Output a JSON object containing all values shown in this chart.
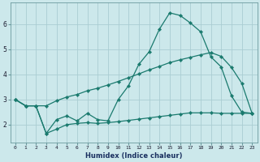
{
  "xlabel": "Humidex (Indice chaleur)",
  "ylabel": "",
  "bg_color": "#cce8eb",
  "grid_color": "#aacdd2",
  "line_color": "#1a7a6e",
  "xlim": [
    -0.5,
    23.5
  ],
  "ylim": [
    1.3,
    6.85
  ],
  "x_ticks": [
    0,
    1,
    2,
    3,
    4,
    5,
    6,
    7,
    8,
    9,
    10,
    11,
    12,
    13,
    14,
    15,
    16,
    17,
    18,
    19,
    20,
    21,
    22,
    23
  ],
  "y_ticks": [
    2,
    3,
    4,
    5,
    6
  ],
  "line1_x": [
    0,
    1,
    2,
    3,
    4,
    5,
    6,
    7,
    8,
    9,
    10,
    11,
    12,
    13,
    14,
    15,
    16,
    17,
    18,
    19,
    20,
    21,
    22,
    23
  ],
  "line1_y": [
    3.0,
    2.75,
    2.75,
    1.65,
    2.2,
    2.35,
    2.15,
    2.45,
    2.2,
    2.15,
    3.0,
    3.55,
    4.4,
    4.9,
    5.8,
    6.45,
    6.35,
    6.05,
    5.7,
    4.7,
    4.3,
    3.15,
    2.5,
    2.45
  ],
  "line2_x": [
    0,
    1,
    2,
    3,
    4,
    5,
    6,
    7,
    8,
    9,
    10,
    11,
    12,
    13,
    14,
    15,
    16,
    17,
    18,
    19,
    20,
    21,
    22,
    23
  ],
  "line2_y": [
    3.0,
    2.75,
    2.75,
    2.75,
    2.95,
    3.1,
    3.2,
    3.35,
    3.45,
    3.58,
    3.72,
    3.87,
    4.02,
    4.18,
    4.32,
    4.47,
    4.58,
    4.68,
    4.78,
    4.87,
    4.72,
    4.28,
    3.65,
    2.45
  ],
  "line3_x": [
    0,
    1,
    2,
    3,
    4,
    5,
    6,
    7,
    8,
    9,
    10,
    11,
    12,
    13,
    14,
    15,
    16,
    17,
    18,
    19,
    20,
    21,
    22,
    23
  ],
  "line3_y": [
    3.0,
    2.75,
    2.75,
    1.65,
    1.82,
    2.0,
    2.05,
    2.08,
    2.05,
    2.08,
    2.12,
    2.17,
    2.22,
    2.27,
    2.32,
    2.37,
    2.42,
    2.47,
    2.47,
    2.47,
    2.45,
    2.45,
    2.45,
    2.45
  ]
}
